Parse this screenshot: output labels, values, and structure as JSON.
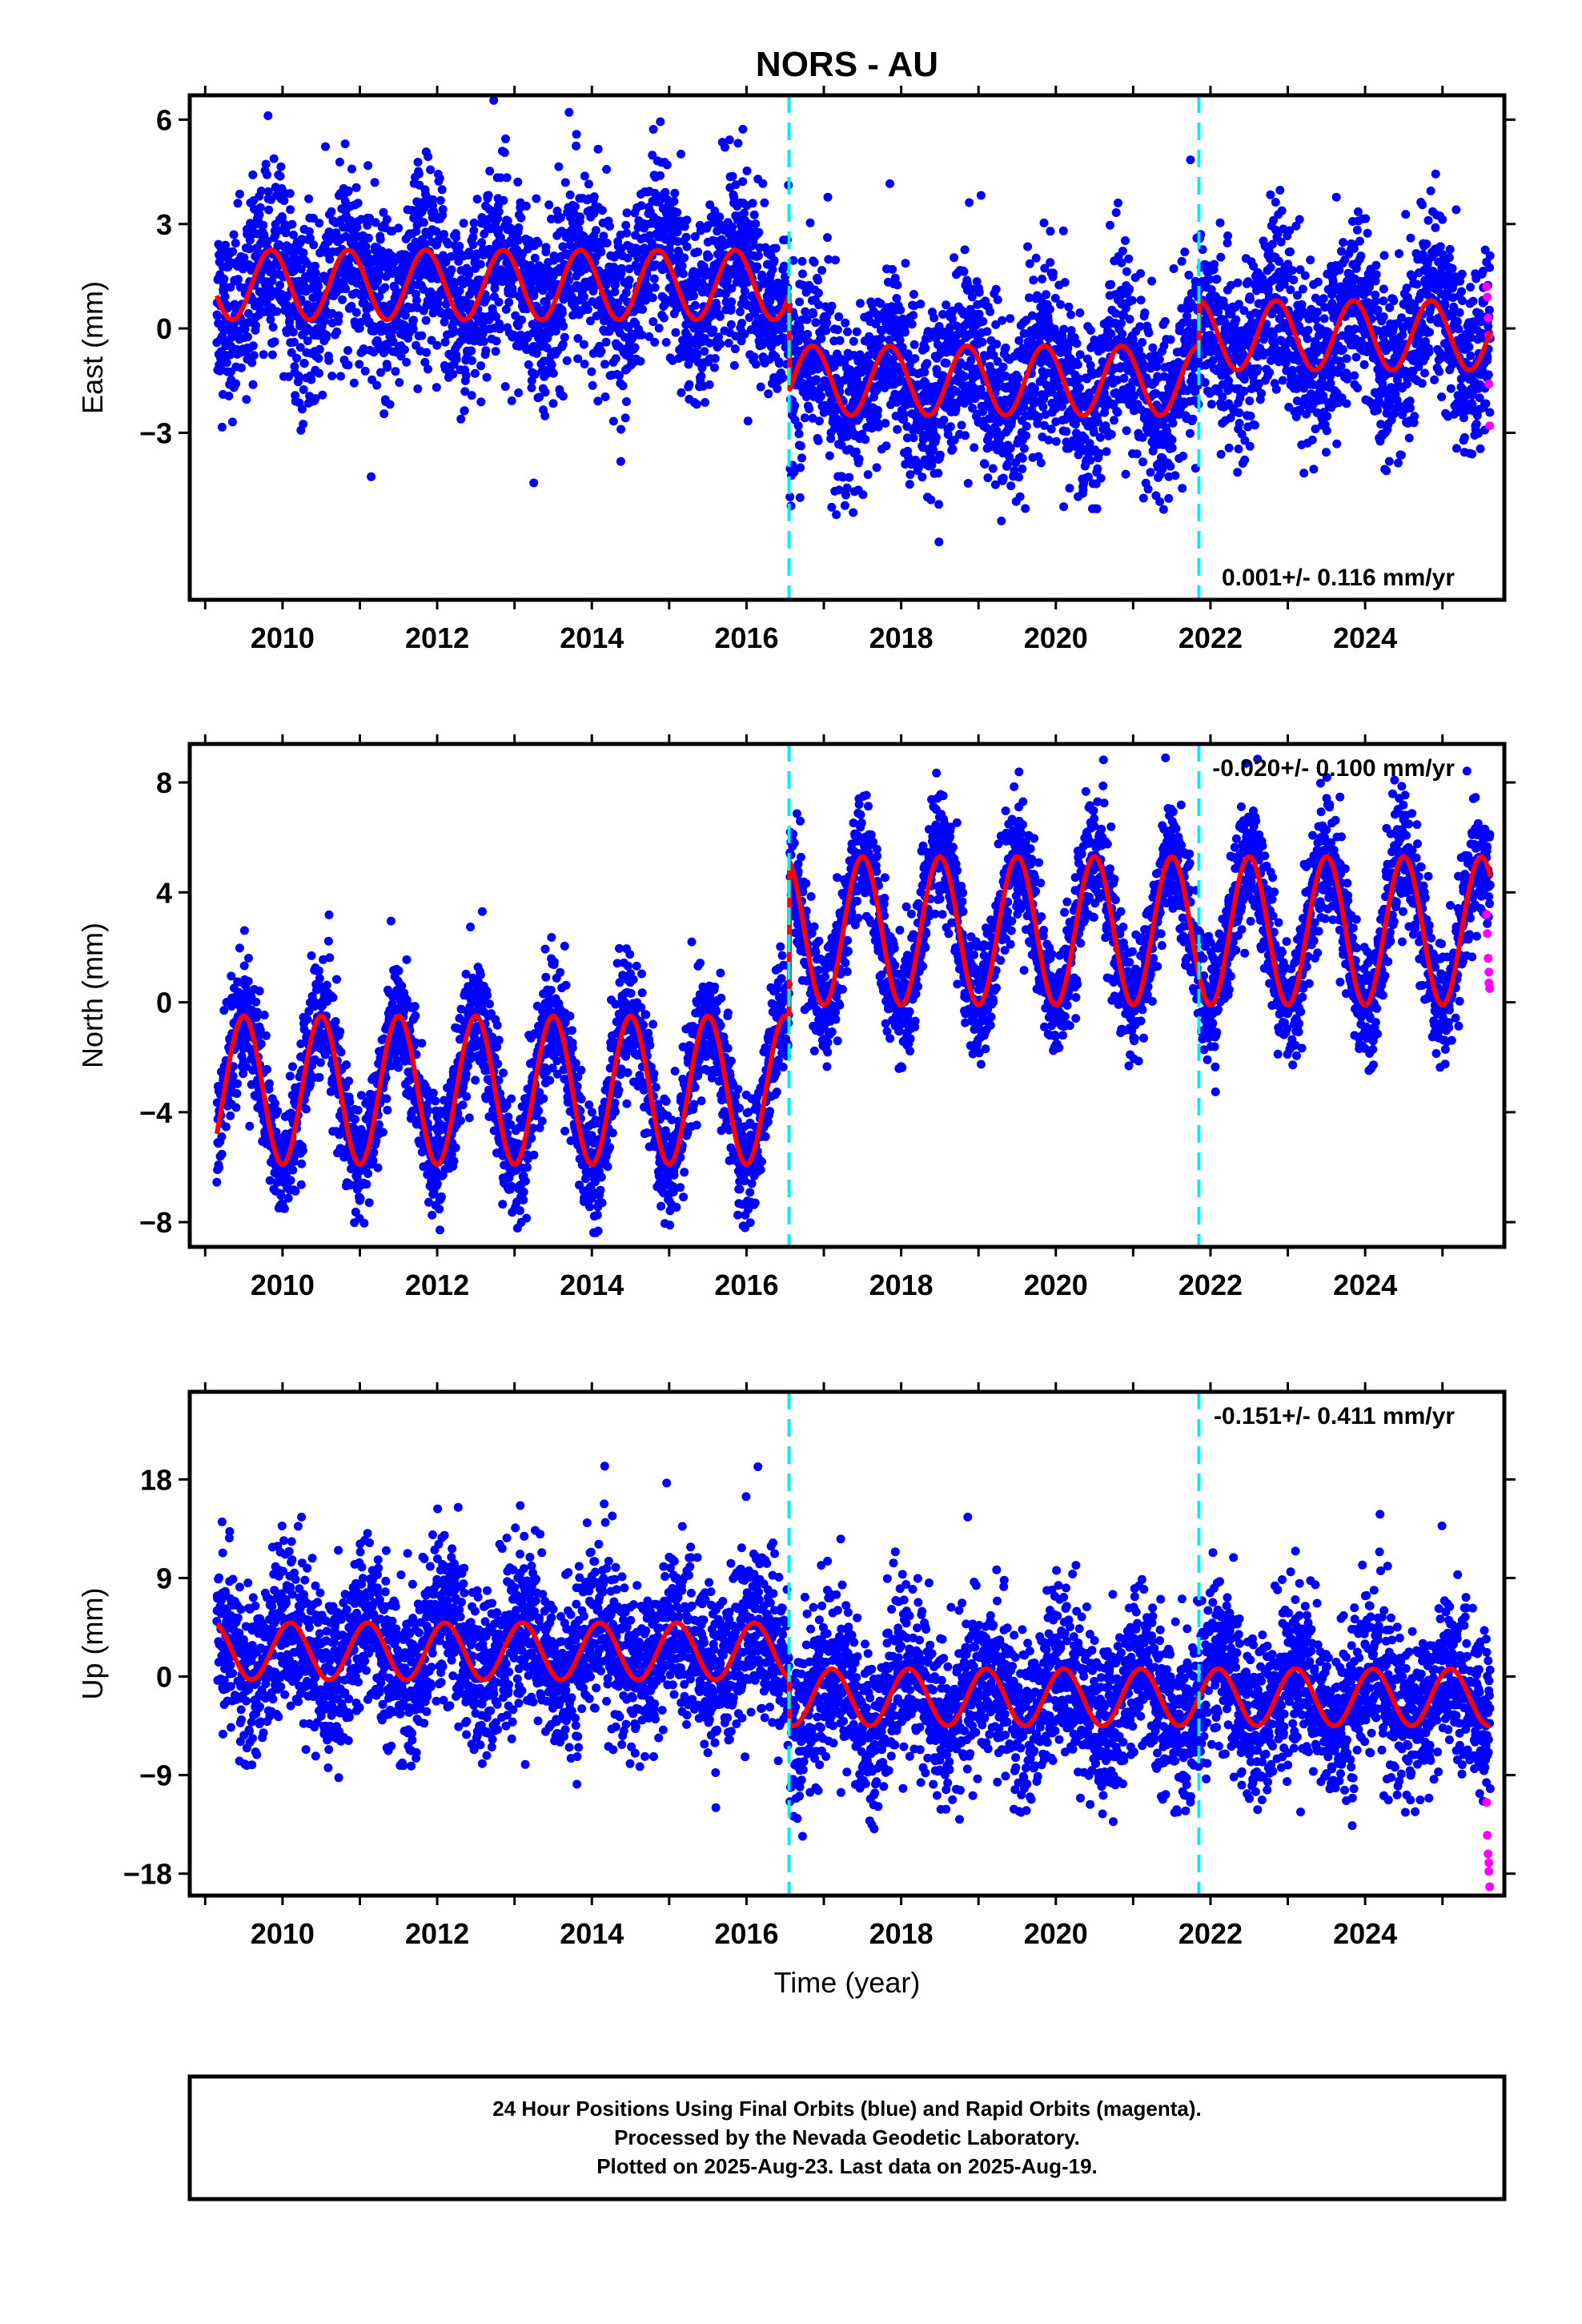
{
  "title": "NORS - AU",
  "xlabel": "Time (year)",
  "colors": {
    "final": "#0000ff",
    "rapid": "#ff00ff",
    "model": "#ff0000",
    "breaks": "#00eeee",
    "frame": "#000000"
  },
  "footer": {
    "line1": "24 Hour Positions Using Final Orbits (blue) and Rapid Orbits (magenta).",
    "line2": "Processed by the Nevada Geodetic Laboratory.",
    "line3": "Plotted on 2025-Aug-23. Last data on 2025-Aug-19."
  },
  "chart_data": [
    {
      "type": "scatter",
      "component": "East",
      "ylabel": "East (mm)",
      "rate_label": "0.001+/- 0.116 mm/yr",
      "rate_position": "bottom-right",
      "xlim": [
        2008.8,
        2025.8
      ],
      "ylim": [
        -7.8,
        6.7
      ],
      "yticks": [
        -3,
        0,
        3,
        6
      ],
      "xticks": [
        2010,
        2012,
        2014,
        2016,
        2018,
        2020,
        2022,
        2024
      ],
      "breaks": [
        2016.55,
        2021.85
      ],
      "model": {
        "segments": [
          {
            "start": 2009.15,
            "end": 2016.55,
            "offset": 1.25,
            "amplitude": 1.0,
            "phase_year_fraction": 0.85
          },
          {
            "start": 2016.56,
            "end": 2021.85,
            "offset": -1.5,
            "amplitude": 1.0,
            "phase_year_fraction": 0.85
          },
          {
            "start": 2021.86,
            "end": 2025.62,
            "offset": -0.2,
            "amplitude": 1.0,
            "phase_year_fraction": 0.85
          }
        ]
      },
      "scatter_spread": 1.3,
      "rapid_points": [
        [
          2025.57,
          1.2
        ],
        [
          2025.58,
          0.9
        ],
        [
          2025.59,
          0.3
        ],
        [
          2025.6,
          -0.2
        ],
        [
          2025.6,
          -1.6
        ],
        [
          2025.61,
          -2.8
        ]
      ]
    },
    {
      "type": "scatter",
      "component": "North",
      "ylabel": "North (mm)",
      "rate_label": "-0.020+/- 0.100 mm/yr",
      "rate_position": "top-right",
      "xlim": [
        2008.8,
        2025.8
      ],
      "ylim": [
        -8.9,
        9.4
      ],
      "yticks": [
        -8,
        -4,
        0,
        4,
        8
      ],
      "xticks": [
        2010,
        2012,
        2014,
        2016,
        2018,
        2020,
        2022,
        2024
      ],
      "breaks": [
        2016.55,
        2021.85
      ],
      "model": {
        "segments": [
          {
            "start": 2009.15,
            "end": 2016.55,
            "offset": -3.2,
            "amplitude": 2.7,
            "phase_year_fraction": 0.5
          },
          {
            "start": 2016.56,
            "end": 2021.85,
            "offset": 2.6,
            "amplitude": 2.7,
            "phase_year_fraction": 0.5
          },
          {
            "start": 2021.86,
            "end": 2025.62,
            "offset": 2.6,
            "amplitude": 2.7,
            "phase_year_fraction": 0.5
          }
        ]
      },
      "scatter_spread": 1.1,
      "rapid_points": [
        [
          2025.57,
          3.2
        ],
        [
          2025.58,
          2.5
        ],
        [
          2025.59,
          1.6
        ],
        [
          2025.6,
          1.1
        ],
        [
          2025.6,
          0.7
        ],
        [
          2025.61,
          0.5
        ]
      ]
    },
    {
      "type": "scatter",
      "component": "Up",
      "ylabel": "Up (mm)",
      "rate_label": "-0.151+/- 0.411 mm/yr",
      "rate_position": "top-right",
      "xlim": [
        2008.8,
        2025.8
      ],
      "ylim": [
        -20,
        26
      ],
      "yticks": [
        -18,
        -9,
        0,
        9,
        18
      ],
      "xticks": [
        2010,
        2012,
        2014,
        2016,
        2018,
        2020,
        2022,
        2024
      ],
      "breaks": [
        2016.55,
        2021.85
      ],
      "model": {
        "segments": [
          {
            "start": 2009.15,
            "end": 2016.55,
            "offset": 2.3,
            "amplitude": 2.6,
            "phase_year_fraction": 0.1
          },
          {
            "start": 2016.56,
            "end": 2021.85,
            "offset": -1.9,
            "amplitude": 2.6,
            "phase_year_fraction": 0.1
          },
          {
            "start": 2021.86,
            "end": 2025.62,
            "offset": -1.9,
            "amplitude": 2.6,
            "phase_year_fraction": 0.1
          }
        ]
      },
      "scatter_spread": 3.8,
      "rapid_points": [
        [
          2025.57,
          -11.5
        ],
        [
          2025.58,
          -14.5
        ],
        [
          2025.59,
          -16.2
        ],
        [
          2025.6,
          -17.0
        ],
        [
          2025.6,
          -17.8
        ],
        [
          2025.61,
          -19.2
        ]
      ]
    }
  ]
}
